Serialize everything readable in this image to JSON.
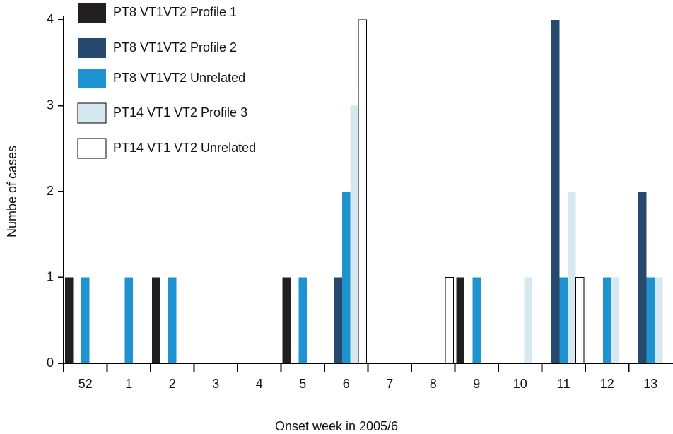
{
  "chart_data": {
    "type": "bar",
    "x_label": "Onset week in 2005/6",
    "y_label": "Numbe of cases",
    "categories": [
      "52",
      "1",
      "2",
      "3",
      "4",
      "5",
      "6",
      "7",
      "8",
      "9",
      "10",
      "11",
      "12",
      "13"
    ],
    "series": [
      {
        "name": "PT8 VT1VT2 Profile 1",
        "color": "#231f20",
        "values": [
          1,
          0,
          1,
          0,
          0,
          1,
          0,
          0,
          0,
          1,
          0,
          0,
          0,
          0
        ]
      },
      {
        "name": "PT8 VT1VT2 Profile 2",
        "color": "#27496d",
        "values": [
          0,
          0,
          0,
          0,
          0,
          0,
          1,
          0,
          0,
          0,
          0,
          4,
          0,
          2
        ]
      },
      {
        "name": "PT8 VT1VT2 Unrelated",
        "color": "#1e93cf",
        "values": [
          1,
          1,
          1,
          0,
          0,
          1,
          2,
          0,
          0,
          1,
          0,
          1,
          1,
          1
        ]
      },
      {
        "name": "PT14 VT1 VT2 Profile 3",
        "color": "#d6e9f0",
        "values": [
          0,
          0,
          0,
          0,
          0,
          0,
          3,
          0,
          0,
          0,
          1,
          2,
          1,
          1
        ]
      },
      {
        "name": "PT14 VT1 VT2 Unrelated",
        "color": "#ffffff",
        "values": [
          0,
          0,
          0,
          0,
          0,
          0,
          4,
          0,
          1,
          0,
          0,
          1,
          0,
          0
        ]
      }
    ],
    "ylim": [
      0,
      4
    ],
    "yticks": [
      0,
      1,
      2,
      3,
      4
    ],
    "legend": "upper left"
  }
}
